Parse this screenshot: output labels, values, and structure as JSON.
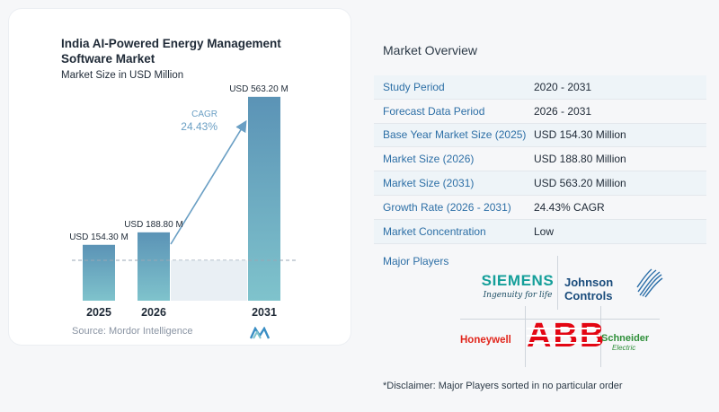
{
  "chart_data": {
    "type": "bar",
    "title": "India AI-Powered Energy Management Software Market",
    "subtitle": "Market Size in USD Million",
    "categories": [
      "2025",
      "2026",
      "2031"
    ],
    "values": [
      154.3,
      188.8,
      563.2
    ],
    "data_labels": [
      "USD 154.30 M",
      "USD 188.80 M",
      "USD 563.20 M"
    ],
    "ylim": [
      0,
      600
    ],
    "cagr_label": "CAGR",
    "cagr_value": "24.43%",
    "grid": false,
    "legend": "none"
  },
  "source": "Source:  Mordor Intelligence",
  "overview": {
    "title": "Market Overview",
    "rows": [
      {
        "label": "Study Period",
        "value": "2020 - 2031"
      },
      {
        "label": "Forecast Data Period",
        "value": "2026 - 2031"
      },
      {
        "label": "Base Year Market Size (2025)",
        "value": "USD 154.30 Million"
      },
      {
        "label": "Market Size (2026)",
        "value": "USD 188.80 Million"
      },
      {
        "label": "Market Size (2031)",
        "value": "USD 563.20 Million"
      },
      {
        "label": "Growth Rate (2026 - 2031)",
        "value": "24.43% CAGR"
      },
      {
        "label": "Market Concentration",
        "value": "Low"
      }
    ],
    "players_title": "Major Players",
    "players": {
      "siemens": "SIEMENS",
      "siemens_tagline": "Ingenuity for life",
      "johnson_line1": "Johnson",
      "johnson_line2": "Controls",
      "honeywell": "Honeywell",
      "abb": "ABB",
      "schneider": "Schneider",
      "schneider_sub": "Electric"
    },
    "disclaimer": "*Disclaimer: Major Players sorted in no particular order"
  },
  "colors": {
    "bar_top": "#5b93b6",
    "bar_bottom": "#7fc3cc",
    "cagr_text": "#6a9fc4",
    "label_blue": "#2d6fa6",
    "row_shade": "#eef4f8"
  }
}
